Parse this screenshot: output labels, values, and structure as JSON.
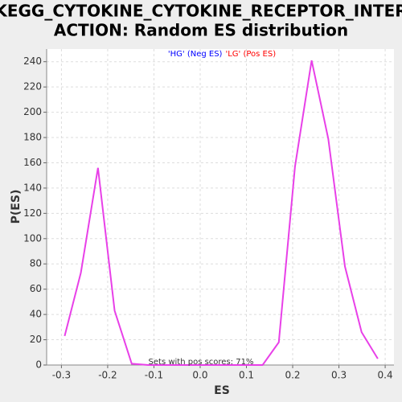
{
  "chart_data": {
    "type": "line",
    "title": [
      "KEGG_CYTOKINE_CYTOKINE_RECEPTOR_INTER",
      "ACTION: Random ES distribution"
    ],
    "legend_items": [
      {
        "label": "'HG' (Neg ES)",
        "color": "#0000ff"
      },
      {
        "label": "'LG' (Pos ES)",
        "color": "#ff0000"
      }
    ],
    "annotation": "Sets with pos scores: 71%",
    "x_label": "ES",
    "y_label": "P(ES)",
    "x": [
      -0.293,
      -0.258,
      -0.221,
      -0.185,
      -0.148,
      -0.112,
      -0.076,
      -0.04,
      -0.004,
      0.032,
      0.068,
      0.103,
      0.135,
      0.17,
      0.205,
      0.241,
      0.277,
      0.313,
      0.349,
      0.384
    ],
    "series": [
      {
        "color": "#e840e8",
        "values": [
          23,
          73,
          156,
          43,
          1,
          0,
          0,
          0,
          0,
          0,
          0,
          0,
          0,
          18,
          157,
          241,
          179,
          78,
          26,
          5
        ]
      }
    ],
    "xlim": [
      -0.332,
      0.419
    ],
    "ylim": [
      0,
      250
    ],
    "xticks": [
      -0.3,
      -0.2,
      -0.1,
      {
        "value": 0,
        "label": "0.0"
      },
      0.1,
      0.2,
      0.3,
      0.4
    ],
    "yticks": [
      0,
      20,
      40,
      60,
      80,
      100,
      120,
      140,
      160,
      180,
      200,
      220,
      240
    ],
    "grid": true
  }
}
